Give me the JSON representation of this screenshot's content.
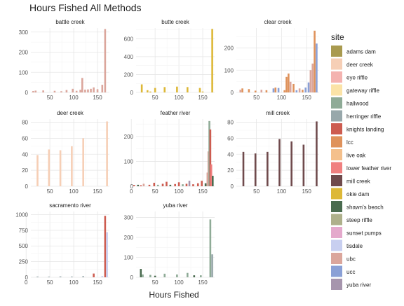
{
  "chart_data": {
    "type": "bar",
    "title": "Hours Fished All Methods",
    "xlabel": "Hours Fished",
    "ylabel": "",
    "legend": {
      "title": "site",
      "placement": "right",
      "items": [
        {
          "label": "adams dam",
          "color": "#a99a4f"
        },
        {
          "label": "deer creek",
          "color": "#f6cfb6"
        },
        {
          "label": "eye riffle",
          "color": "#f4b3b0"
        },
        {
          "label": "gateway riffle",
          "color": "#fbe3a7"
        },
        {
          "label": "hallwood",
          "color": "#8fab97"
        },
        {
          "label": "herringer riffle",
          "color": "#98a8ab"
        },
        {
          "label": "knights landing",
          "color": "#cd5c50"
        },
        {
          "label": "lcc",
          "color": "#df925b"
        },
        {
          "label": "live oak",
          "color": "#f4c08c"
        },
        {
          "label": "lower feather river",
          "color": "#f08080"
        },
        {
          "label": "mill creek",
          "color": "#6f4a4c"
        },
        {
          "label": "okie dam",
          "color": "#ddb838"
        },
        {
          "label": "shawn's beach",
          "color": "#4a6b4f"
        },
        {
          "label": "steep riffle",
          "color": "#aeb08b"
        },
        {
          "label": "sunset pumps",
          "color": "#e4a9cc"
        },
        {
          "label": "tisdale",
          "color": "#c8cff0"
        },
        {
          "label": "ubc",
          "color": "#dba69c"
        },
        {
          "label": "ucc",
          "color": "#8aa0d6"
        },
        {
          "label": "yuba river",
          "color": "#a695ad"
        }
      ]
    },
    "x_range": [
      10,
      175
    ],
    "panels": [
      {
        "name": "battle creek",
        "ylim": [
          0,
          320
        ],
        "yticks": [
          "0",
          "100",
          "200",
          "300"
        ],
        "xticks": [
          "50",
          "100",
          "150"
        ],
        "bars": [
          {
            "x": 15,
            "y": 7,
            "color": "#dba69c"
          },
          {
            "x": 20,
            "y": 9,
            "color": "#dba69c"
          },
          {
            "x": 36,
            "y": 10,
            "color": "#dba69c"
          },
          {
            "x": 60,
            "y": 8,
            "color": "#dba69c"
          },
          {
            "x": 74,
            "y": 6,
            "color": "#dba69c"
          },
          {
            "x": 85,
            "y": 12,
            "color": "#dba69c"
          },
          {
            "x": 98,
            "y": 18,
            "color": "#dba69c"
          },
          {
            "x": 106,
            "y": 8,
            "color": "#dba69c"
          },
          {
            "x": 114,
            "y": 13,
            "color": "#dba69c"
          },
          {
            "x": 118,
            "y": 72,
            "color": "#dba69c"
          },
          {
            "x": 124,
            "y": 14,
            "color": "#dba69c"
          },
          {
            "x": 130,
            "y": 15,
            "color": "#dba69c"
          },
          {
            "x": 136,
            "y": 18,
            "color": "#dba69c"
          },
          {
            "x": 142,
            "y": 25,
            "color": "#dba69c"
          },
          {
            "x": 150,
            "y": 16,
            "color": "#dba69c"
          },
          {
            "x": 160,
            "y": 38,
            "color": "#dba69c"
          },
          {
            "x": 166,
            "y": 315,
            "color": "#dba69c"
          }
        ]
      },
      {
        "name": "butte creek",
        "ylim": [
          0,
          720
        ],
        "yticks": [
          "0",
          "200",
          "400",
          "600"
        ],
        "xticks": [
          "50",
          "100",
          "150"
        ],
        "bars": [
          {
            "x": 22,
            "y": 90,
            "color": "#ddb838"
          },
          {
            "x": 34,
            "y": 25,
            "color": "#ddb838"
          },
          {
            "x": 40,
            "y": 10,
            "color": "#ddb838"
          },
          {
            "x": 50,
            "y": 50,
            "color": "#ddb838"
          },
          {
            "x": 70,
            "y": 60,
            "color": "#ddb838"
          },
          {
            "x": 96,
            "y": 65,
            "color": "#ddb838"
          },
          {
            "x": 118,
            "y": 60,
            "color": "#ddb838"
          },
          {
            "x": 144,
            "y": 50,
            "color": "#ddb838"
          },
          {
            "x": 150,
            "y": 10,
            "color": "#ddb838"
          },
          {
            "x": 170,
            "y": 710,
            "color": "#ddb838"
          }
        ]
      },
      {
        "name": "clear creek",
        "ylim": [
          0,
          290
        ],
        "yticks": [
          "0",
          "100",
          "200"
        ],
        "xticks": [
          "50",
          "100",
          "150"
        ],
        "bars": [
          {
            "x": 18,
            "y": 12,
            "color": "#dba69c"
          },
          {
            "x": 22,
            "y": 18,
            "color": "#df925b"
          },
          {
            "x": 35,
            "y": 15,
            "color": "#df925b"
          },
          {
            "x": 48,
            "y": 8,
            "color": "#df925b"
          },
          {
            "x": 60,
            "y": 12,
            "color": "#dba69c"
          },
          {
            "x": 70,
            "y": 10,
            "color": "#df925b"
          },
          {
            "x": 84,
            "y": 18,
            "color": "#8aa0d6"
          },
          {
            "x": 88,
            "y": 22,
            "color": "#df925b"
          },
          {
            "x": 94,
            "y": 20,
            "color": "#8aa0d6"
          },
          {
            "x": 106,
            "y": 10,
            "color": "#df925b"
          },
          {
            "x": 110,
            "y": 70,
            "color": "#df925b"
          },
          {
            "x": 114,
            "y": 85,
            "color": "#df925b"
          },
          {
            "x": 118,
            "y": 48,
            "color": "#dba69c"
          },
          {
            "x": 124,
            "y": 38,
            "color": "#df925b"
          },
          {
            "x": 130,
            "y": 10,
            "color": "#8aa0d6"
          },
          {
            "x": 136,
            "y": 18,
            "color": "#dba69c"
          },
          {
            "x": 142,
            "y": 12,
            "color": "#df925b"
          },
          {
            "x": 148,
            "y": 22,
            "color": "#8aa0d6"
          },
          {
            "x": 154,
            "y": 45,
            "color": "#8aa0d6"
          },
          {
            "x": 158,
            "y": 100,
            "color": "#dba69c"
          },
          {
            "x": 162,
            "y": 130,
            "color": "#dba69c"
          },
          {
            "x": 166,
            "y": 278,
            "color": "#df925b"
          },
          {
            "x": 170,
            "y": 220,
            "color": "#8aa0d6"
          }
        ]
      },
      {
        "name": "deer creek",
        "ylim": [
          0,
          84
        ],
        "yticks": [
          "0",
          "20",
          "40",
          "60",
          "80"
        ],
        "xticks": [
          "50",
          "100",
          "150"
        ],
        "bars": [
          {
            "x": 24,
            "y": 39,
            "color": "#f6cfb6"
          },
          {
            "x": 48,
            "y": 46,
            "color": "#f6cfb6"
          },
          {
            "x": 72,
            "y": 45,
            "color": "#f6cfb6"
          },
          {
            "x": 96,
            "y": 50,
            "color": "#f6cfb6"
          },
          {
            "x": 120,
            "y": 60,
            "color": "#f6cfb6"
          },
          {
            "x": 170,
            "y": 81,
            "color": "#f6cfb6"
          }
        ]
      },
      {
        "name": "feather river",
        "ylim": [
          0,
          270
        ],
        "yticks": [
          "0",
          "100",
          "200"
        ],
        "xticks": [
          "0",
          "50",
          "100",
          "150"
        ],
        "bars": [
          {
            "x": 6,
            "y": 5,
            "color": "#cd5c50"
          },
          {
            "x": 14,
            "y": 6,
            "color": "#4a6b4f"
          },
          {
            "x": 20,
            "y": 4,
            "color": "#cd5c50"
          },
          {
            "x": 26,
            "y": 10,
            "color": "#dba69c"
          },
          {
            "x": 38,
            "y": 6,
            "color": "#cd5c50"
          },
          {
            "x": 48,
            "y": 14,
            "color": "#cd5c50"
          },
          {
            "x": 56,
            "y": 6,
            "color": "#8fab97"
          },
          {
            "x": 66,
            "y": 10,
            "color": "#cd5c50"
          },
          {
            "x": 74,
            "y": 18,
            "color": "#cd5c50"
          },
          {
            "x": 82,
            "y": 6,
            "color": "#4a6b4f"
          },
          {
            "x": 92,
            "y": 9,
            "color": "#cd5c50"
          },
          {
            "x": 100,
            "y": 16,
            "color": "#cd5c50"
          },
          {
            "x": 108,
            "y": 8,
            "color": "#8fab97"
          },
          {
            "x": 116,
            "y": 10,
            "color": "#cd5c50"
          },
          {
            "x": 122,
            "y": 22,
            "color": "#a695ad"
          },
          {
            "x": 130,
            "y": 8,
            "color": "#cd5c50"
          },
          {
            "x": 140,
            "y": 12,
            "color": "#cd5c50"
          },
          {
            "x": 148,
            "y": 22,
            "color": "#cd5c50"
          },
          {
            "x": 156,
            "y": 12,
            "color": "#4a6b4f"
          },
          {
            "x": 160,
            "y": 55,
            "color": "#dba69c"
          },
          {
            "x": 162,
            "y": 140,
            "color": "#dba69c"
          },
          {
            "x": 164,
            "y": 262,
            "color": "#8fab97"
          },
          {
            "x": 166,
            "y": 228,
            "color": "#cd5c50"
          },
          {
            "x": 168,
            "y": 88,
            "color": "#f08080"
          },
          {
            "x": 171,
            "y": 42,
            "color": "#4a6b4f"
          }
        ]
      },
      {
        "name": "mill creek",
        "ylim": [
          0,
          84
        ],
        "yticks": [
          "0",
          "20",
          "40",
          "60",
          "80"
        ],
        "xticks": [
          "50",
          "100",
          "150"
        ],
        "bars": [
          {
            "x": 24,
            "y": 43,
            "color": "#6f4a4c"
          },
          {
            "x": 48,
            "y": 41,
            "color": "#6f4a4c"
          },
          {
            "x": 72,
            "y": 43,
            "color": "#6f4a4c"
          },
          {
            "x": 96,
            "y": 59,
            "color": "#6f4a4c"
          },
          {
            "x": 120,
            "y": 56,
            "color": "#6f4a4c"
          },
          {
            "x": 144,
            "y": 52,
            "color": "#6f4a4c"
          },
          {
            "x": 170,
            "y": 81,
            "color": "#6f4a4c"
          }
        ]
      },
      {
        "name": "sacramento river",
        "ylim": [
          0,
          1050
        ],
        "yticks": [
          "0",
          "250",
          "500",
          "750",
          "1000"
        ],
        "xticks": [
          "0",
          "50",
          "100",
          "150"
        ],
        "bars": [
          {
            "x": 24,
            "y": 12,
            "color": "#98a8ab"
          },
          {
            "x": 48,
            "y": 10,
            "color": "#98a8ab"
          },
          {
            "x": 72,
            "y": 14,
            "color": "#98a8ab"
          },
          {
            "x": 96,
            "y": 12,
            "color": "#98a8ab"
          },
          {
            "x": 120,
            "y": 18,
            "color": "#98a8ab"
          },
          {
            "x": 142,
            "y": 60,
            "color": "#cd5c50"
          },
          {
            "x": 160,
            "y": 20,
            "color": "#c8cff0"
          },
          {
            "x": 166,
            "y": 980,
            "color": "#cd5c50"
          },
          {
            "x": 170,
            "y": 720,
            "color": "#c8cff0"
          }
        ]
      },
      {
        "name": "yuba river",
        "ylim": [
          0,
          330
        ],
        "yticks": [
          "0",
          "100",
          "200",
          "300"
        ],
        "xticks": [
          "50",
          "100",
          "150"
        ],
        "bars": [
          {
            "x": 20,
            "y": 42,
            "color": "#4a6b4f"
          },
          {
            "x": 24,
            "y": 14,
            "color": "#8fab97"
          },
          {
            "x": 40,
            "y": 12,
            "color": "#8fab97"
          },
          {
            "x": 50,
            "y": 8,
            "color": "#4a6b4f"
          },
          {
            "x": 70,
            "y": 18,
            "color": "#8fab97"
          },
          {
            "x": 96,
            "y": 14,
            "color": "#8fab97"
          },
          {
            "x": 118,
            "y": 22,
            "color": "#8fab97"
          },
          {
            "x": 132,
            "y": 10,
            "color": "#4a6b4f"
          },
          {
            "x": 146,
            "y": 10,
            "color": "#8fab97"
          },
          {
            "x": 166,
            "y": 290,
            "color": "#8fab97"
          },
          {
            "x": 170,
            "y": 115,
            "color": "#98a8ab"
          }
        ]
      }
    ]
  }
}
